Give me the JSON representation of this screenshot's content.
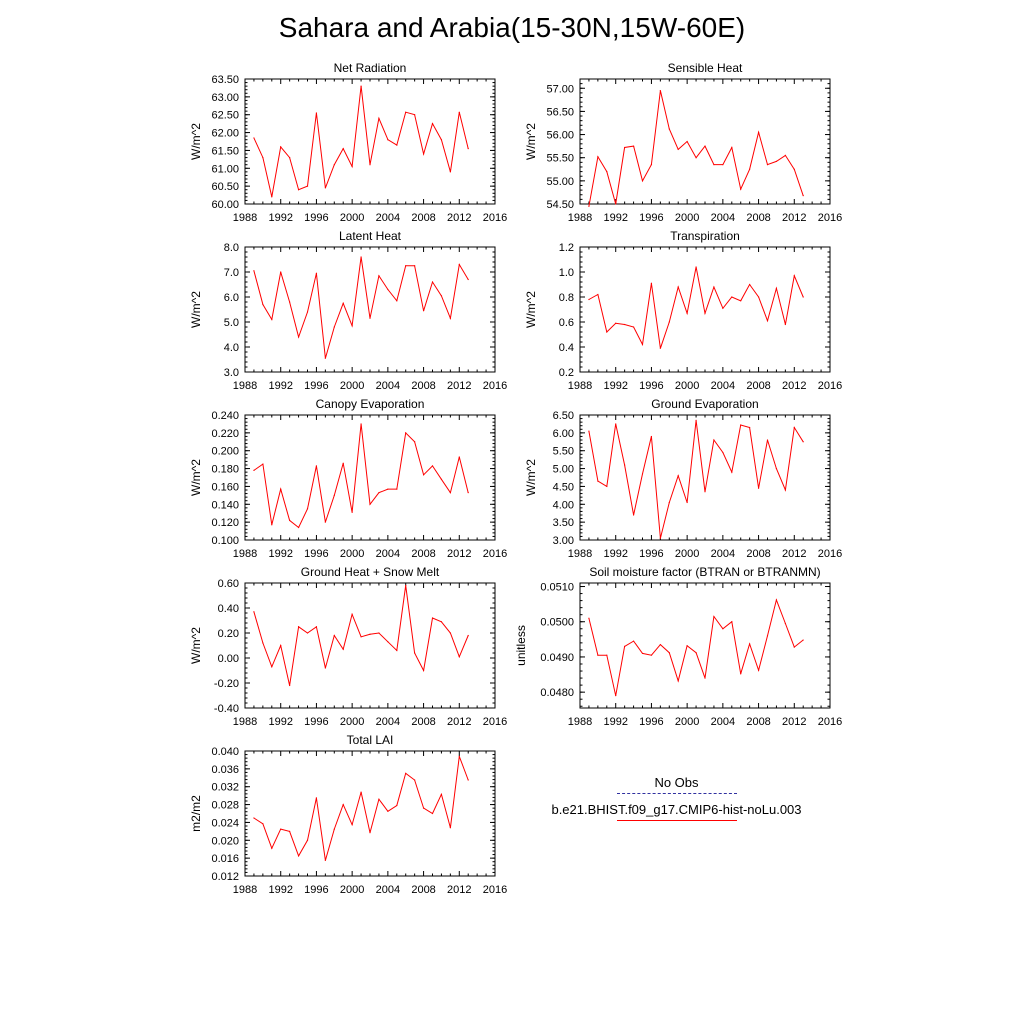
{
  "title": "Sahara and Arabia(15-30N,15W-60E)",
  "legend": {
    "entries": [
      {
        "label": "No Obs",
        "style": "dashed",
        "color": "#3030a0"
      },
      {
        "label": "b.e21.BHIST.f09_g17.CMIP6-hist-noLu.003",
        "style": "solid",
        "color": "#ff0000"
      }
    ]
  },
  "chart_data": [
    {
      "type": "line",
      "title": "Net Radiation",
      "ylabel": "W/m^2",
      "xlim": [
        1988,
        2016
      ],
      "xticks": [
        "1988",
        "1992",
        "1996",
        "2000",
        "2004",
        "2008",
        "2012",
        "2016"
      ],
      "ylim": [
        60.0,
        63.5
      ],
      "yticks": [
        "60.00",
        "60.50",
        "61.00",
        "61.50",
        "62.00",
        "62.50",
        "63.00",
        "63.50"
      ],
      "x": [
        1989,
        1990,
        1991,
        1992,
        1993,
        1994,
        1995,
        1996,
        1997,
        1998,
        1999,
        2000,
        2001,
        2002,
        2003,
        2004,
        2005,
        2006,
        2007,
        2008,
        2009,
        2010,
        2011,
        2012,
        2013
      ],
      "series": [
        {
          "color": "#ff0000",
          "values": [
            61.85,
            61.3,
            60.2,
            61.6,
            61.3,
            60.4,
            60.5,
            62.55,
            60.45,
            61.1,
            61.55,
            61.05,
            63.3,
            61.1,
            62.4,
            61.8,
            61.65,
            62.57,
            62.5,
            61.4,
            62.25,
            61.8,
            60.9,
            62.57,
            61.55
          ]
        }
      ]
    },
    {
      "type": "line",
      "title": "Sensible Heat",
      "ylabel": "W/m^2",
      "xlim": [
        1988,
        2016
      ],
      "xticks": [
        "1988",
        "1992",
        "1996",
        "2000",
        "2004",
        "2008",
        "2012",
        "2016"
      ],
      "ylim": [
        54.5,
        57.2
      ],
      "yticks": [
        "54.50",
        "55.00",
        "55.50",
        "56.00",
        "56.50",
        "57.00"
      ],
      "x": [
        1989,
        1990,
        1991,
        1992,
        1993,
        1994,
        1995,
        1996,
        1997,
        1998,
        1999,
        2000,
        2001,
        2002,
        2003,
        2004,
        2005,
        2006,
        2007,
        2008,
        2009,
        2010,
        2011,
        2012,
        2013
      ],
      "series": [
        {
          "color": "#ff0000",
          "values": [
            54.45,
            55.52,
            55.2,
            54.5,
            55.72,
            55.75,
            55.0,
            55.35,
            56.95,
            56.12,
            55.68,
            55.85,
            55.5,
            55.75,
            55.35,
            55.35,
            55.72,
            54.82,
            55.25,
            56.05,
            55.35,
            55.42,
            55.55,
            55.25,
            54.68
          ]
        }
      ]
    },
    {
      "type": "line",
      "title": "Latent Heat",
      "ylabel": "W/m^2",
      "xlim": [
        1988,
        2016
      ],
      "xticks": [
        "1988",
        "1992",
        "1996",
        "2000",
        "2004",
        "2008",
        "2012",
        "2016"
      ],
      "ylim": [
        3.0,
        8.0
      ],
      "yticks": [
        "3.0",
        "4.0",
        "5.0",
        "6.0",
        "7.0",
        "8.0"
      ],
      "x": [
        1989,
        1990,
        1991,
        1992,
        1993,
        1994,
        1995,
        1996,
        1997,
        1998,
        1999,
        2000,
        2001,
        2002,
        2003,
        2004,
        2005,
        2006,
        2007,
        2008,
        2009,
        2010,
        2011,
        2012,
        2013
      ],
      "series": [
        {
          "color": "#ff0000",
          "values": [
            7.05,
            5.7,
            5.1,
            7.0,
            5.8,
            4.4,
            5.4,
            6.95,
            3.55,
            4.8,
            5.75,
            4.85,
            7.6,
            5.15,
            6.85,
            6.3,
            5.85,
            7.25,
            7.25,
            5.45,
            6.6,
            6.05,
            5.15,
            7.3,
            6.7
          ]
        }
      ]
    },
    {
      "type": "line",
      "title": "Transpiration",
      "ylabel": "W/m^2",
      "xlim": [
        1988,
        2016
      ],
      "xticks": [
        "1988",
        "1992",
        "1996",
        "2000",
        "2004",
        "2008",
        "2012",
        "2016"
      ],
      "ylim": [
        0.2,
        1.2
      ],
      "yticks": [
        "0.2",
        "0.4",
        "0.6",
        "0.8",
        "1.0",
        "1.2"
      ],
      "x": [
        1989,
        1990,
        1991,
        1992,
        1993,
        1994,
        1995,
        1996,
        1997,
        1998,
        1999,
        2000,
        2001,
        2002,
        2003,
        2004,
        2005,
        2006,
        2007,
        2008,
        2009,
        2010,
        2011,
        2012,
        2013
      ],
      "series": [
        {
          "color": "#ff0000",
          "values": [
            0.78,
            0.82,
            0.52,
            0.59,
            0.58,
            0.56,
            0.42,
            0.91,
            0.39,
            0.6,
            0.88,
            0.67,
            1.04,
            0.67,
            0.88,
            0.71,
            0.8,
            0.77,
            0.9,
            0.8,
            0.61,
            0.87,
            0.58,
            0.97,
            0.8
          ]
        }
      ]
    },
    {
      "type": "line",
      "title": "Canopy Evaporation",
      "ylabel": "W/m^2",
      "xlim": [
        1988,
        2016
      ],
      "xticks": [
        "1988",
        "1992",
        "1996",
        "2000",
        "2004",
        "2008",
        "2012",
        "2016"
      ],
      "ylim": [
        0.1,
        0.24
      ],
      "yticks": [
        "0.100",
        "0.120",
        "0.140",
        "0.160",
        "0.180",
        "0.200",
        "0.220",
        "0.240"
      ],
      "x": [
        1989,
        1990,
        1991,
        1992,
        1993,
        1994,
        1995,
        1996,
        1997,
        1998,
        1999,
        2000,
        2001,
        2002,
        2003,
        2004,
        2005,
        2006,
        2007,
        2008,
        2009,
        2010,
        2011,
        2012,
        2013
      ],
      "series": [
        {
          "color": "#ff0000",
          "values": [
            0.178,
            0.185,
            0.117,
            0.157,
            0.122,
            0.114,
            0.135,
            0.183,
            0.12,
            0.15,
            0.186,
            0.131,
            0.23,
            0.14,
            0.153,
            0.157,
            0.157,
            0.22,
            0.21,
            0.173,
            0.183,
            0.168,
            0.153,
            0.193,
            0.153
          ]
        }
      ]
    },
    {
      "type": "line",
      "title": "Ground Evaporation",
      "ylabel": "W/m^2",
      "xlim": [
        1988,
        2016
      ],
      "xticks": [
        "1988",
        "1992",
        "1996",
        "2000",
        "2004",
        "2008",
        "2012",
        "2016"
      ],
      "ylim": [
        3.0,
        6.5
      ],
      "yticks": [
        "3.00",
        "3.50",
        "4.00",
        "4.50",
        "5.00",
        "5.50",
        "6.00",
        "6.50"
      ],
      "x": [
        1989,
        1990,
        1991,
        1992,
        1993,
        1994,
        1995,
        1996,
        1997,
        1998,
        1999,
        2000,
        2001,
        2002,
        2003,
        2004,
        2005,
        2006,
        2007,
        2008,
        2009,
        2010,
        2011,
        2012,
        2013
      ],
      "series": [
        {
          "color": "#ff0000",
          "values": [
            6.05,
            4.65,
            4.5,
            6.25,
            5.1,
            3.7,
            4.85,
            5.9,
            3.05,
            4.05,
            4.8,
            4.05,
            6.35,
            4.35,
            5.8,
            5.45,
            4.9,
            6.22,
            6.15,
            4.45,
            5.8,
            5.0,
            4.4,
            6.15,
            5.75
          ]
        }
      ]
    },
    {
      "type": "line",
      "title": "Ground Heat + Snow Melt",
      "ylabel": "W/m^2",
      "xlim": [
        1988,
        2016
      ],
      "xticks": [
        "1988",
        "1992",
        "1996",
        "2000",
        "2004",
        "2008",
        "2012",
        "2016"
      ],
      "ylim": [
        -0.4,
        0.6
      ],
      "yticks": [
        "-0.40",
        "-0.20",
        "0.00",
        "0.20",
        "0.40",
        "0.60"
      ],
      "x": [
        1989,
        1990,
        1991,
        1992,
        1993,
        1994,
        1995,
        1996,
        1997,
        1998,
        1999,
        2000,
        2001,
        2002,
        2003,
        2004,
        2005,
        2006,
        2007,
        2008,
        2009,
        2010,
        2011,
        2012,
        2013
      ],
      "series": [
        {
          "color": "#ff0000",
          "values": [
            0.37,
            0.12,
            -0.07,
            0.1,
            -0.22,
            0.25,
            0.2,
            0.25,
            -0.08,
            0.18,
            0.07,
            0.35,
            0.17,
            0.19,
            0.2,
            0.13,
            0.06,
            0.58,
            0.04,
            -0.1,
            0.32,
            0.29,
            0.2,
            0.01,
            0.18
          ]
        }
      ]
    },
    {
      "type": "line",
      "title": "Soil moisture factor (BTRAN or BTRANMN)",
      "ylabel": "unitless",
      "xlim": [
        1988,
        2016
      ],
      "xticks": [
        "1988",
        "1992",
        "1996",
        "2000",
        "2004",
        "2008",
        "2012",
        "2016"
      ],
      "ylim": [
        0.04755,
        0.0511
      ],
      "yticks": [
        "0.0480",
        "0.0490",
        "0.0500",
        "0.0510"
      ],
      "x": [
        1989,
        1990,
        1991,
        1992,
        1993,
        1994,
        1995,
        1996,
        1997,
        1998,
        1999,
        2000,
        2001,
        2002,
        2003,
        2004,
        2005,
        2006,
        2007,
        2008,
        2009,
        2010,
        2011,
        2012,
        2013
      ],
      "series": [
        {
          "color": "#ff0000",
          "values": [
            0.0501,
            0.04905,
            0.04905,
            0.0479,
            0.0493,
            0.04945,
            0.0491,
            0.04905,
            0.04935,
            0.04912,
            0.04832,
            0.04932,
            0.04912,
            0.0484,
            0.05015,
            0.0498,
            0.05,
            0.04852,
            0.04937,
            0.04862,
            0.0496,
            0.05062,
            0.04995,
            0.04928,
            0.04948
          ]
        }
      ]
    },
    {
      "type": "line",
      "title": "Total LAI",
      "ylabel": "m2/m2",
      "xlim": [
        1988,
        2016
      ],
      "xticks": [
        "1988",
        "1992",
        "1996",
        "2000",
        "2004",
        "2008",
        "2012",
        "2016"
      ],
      "ylim": [
        0.012,
        0.04
      ],
      "yticks": [
        "0.012",
        "0.016",
        "0.020",
        "0.024",
        "0.028",
        "0.032",
        "0.036",
        "0.040"
      ],
      "x": [
        1989,
        1990,
        1991,
        1992,
        1993,
        1994,
        1995,
        1996,
        1997,
        1998,
        1999,
        2000,
        2001,
        2002,
        2003,
        2004,
        2005,
        2006,
        2007,
        2008,
        2009,
        2010,
        2011,
        2012,
        2013
      ],
      "series": [
        {
          "color": "#ff0000",
          "values": [
            0.025,
            0.0237,
            0.0182,
            0.0225,
            0.022,
            0.0165,
            0.02,
            0.0295,
            0.0155,
            0.0225,
            0.028,
            0.0235,
            0.0308,
            0.0217,
            0.0292,
            0.0265,
            0.0278,
            0.035,
            0.0335,
            0.0272,
            0.026,
            0.0303,
            0.0228,
            0.0388,
            0.0335
          ]
        }
      ]
    }
  ]
}
